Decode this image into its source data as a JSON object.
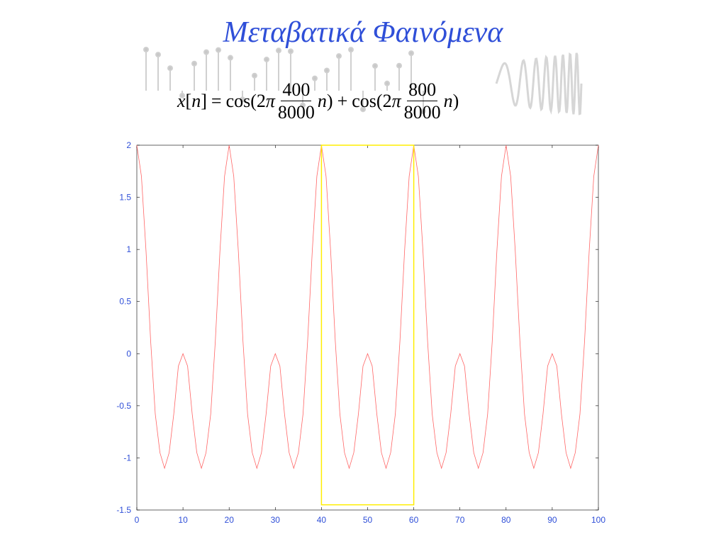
{
  "slide": {
    "title": "Μεταβατικά Φαινόμενα"
  },
  "formula": {
    "lhs_var": "x",
    "lhs_open": "[",
    "lhs_idx": "n",
    "lhs_close": "]",
    "equals": "=",
    "cos1": "cos(2",
    "pi1": "π",
    "frac1_num": "400",
    "frac1_den": "8000",
    "n1": "n",
    "close1": ")",
    "plus": "+",
    "cos2": "cos(2",
    "pi2": "π",
    "frac2_num": "800",
    "frac2_den": "8000",
    "n2": "n",
    "close2": ")"
  },
  "colors": {
    "title": "#2f4fd8",
    "signal": "#ff6666",
    "highlight": "#ffee00",
    "axis_text": "#2f4fd8",
    "axes": "#000000"
  },
  "chart_data": {
    "type": "line",
    "title": "",
    "xlabel": "",
    "ylabel": "",
    "xlim": [
      0,
      100
    ],
    "ylim": [
      -1.5,
      2
    ],
    "xticks": [
      "0",
      "10",
      "20",
      "30",
      "40",
      "50",
      "60",
      "70",
      "80",
      "90",
      "100"
    ],
    "yticks": [
      "2",
      "1.5",
      "1",
      "0.5",
      "0",
      "-0.5",
      "-1",
      "-1.5"
    ],
    "grid": false,
    "legend": "none",
    "series": [
      {
        "x": [
          0,
          1,
          2,
          3,
          4,
          5,
          6,
          7,
          8,
          9,
          10,
          11,
          12,
          13,
          14,
          15,
          16,
          17,
          18,
          19,
          20,
          21,
          22,
          23,
          24,
          25,
          26,
          27,
          28,
          29,
          30,
          31,
          32,
          33,
          34,
          35,
          36,
          37,
          38,
          39,
          40,
          41,
          42,
          43,
          44,
          45,
          46,
          47,
          48,
          49,
          50,
          51,
          52,
          53,
          54,
          55,
          56,
          57,
          58,
          59,
          60,
          61,
          62,
          63,
          64,
          65,
          66,
          67,
          68,
          69,
          70,
          71,
          72,
          73,
          74,
          75,
          76,
          77,
          78,
          79,
          80,
          81,
          82,
          83,
          84,
          85,
          86,
          87,
          88,
          89,
          90,
          91,
          92,
          93,
          94,
          95,
          96,
          97,
          98,
          99,
          100
        ],
        "values": [
          2.0,
          1.7,
          0.98,
          0.12,
          -0.58,
          -0.95,
          -1.1,
          -0.95,
          -0.58,
          -0.12,
          0.0,
          -0.12,
          -0.58,
          -0.95,
          -1.1,
          -0.95,
          -0.58,
          0.12,
          0.98,
          1.7,
          2.0,
          1.7,
          0.98,
          0.12,
          -0.58,
          -0.95,
          -1.1,
          -0.95,
          -0.58,
          -0.12,
          0.0,
          -0.12,
          -0.58,
          -0.95,
          -1.1,
          -0.95,
          -0.58,
          0.12,
          0.98,
          1.7,
          2.0,
          1.7,
          0.98,
          0.12,
          -0.58,
          -0.95,
          -1.1,
          -0.95,
          -0.58,
          -0.12,
          0.0,
          -0.12,
          -0.58,
          -0.95,
          -1.1,
          -0.95,
          -0.58,
          0.12,
          0.98,
          1.7,
          2.0,
          1.7,
          0.98,
          0.12,
          -0.58,
          -0.95,
          -1.1,
          -0.95,
          -0.58,
          -0.12,
          0.0,
          -0.12,
          -0.58,
          -0.95,
          -1.1,
          -0.95,
          -0.58,
          0.12,
          0.98,
          1.7,
          2.0,
          1.7,
          0.98,
          0.12,
          -0.58,
          -0.95,
          -1.1,
          -0.95,
          -0.58,
          -0.12,
          0.0,
          -0.12,
          -0.58,
          -0.95,
          -1.1,
          -0.95,
          -0.58,
          0.12,
          0.98,
          1.7,
          2.0
        ]
      }
    ],
    "highlight_region": {
      "x": [
        40,
        60
      ],
      "y": [
        -1.45,
        2.0
      ]
    }
  }
}
